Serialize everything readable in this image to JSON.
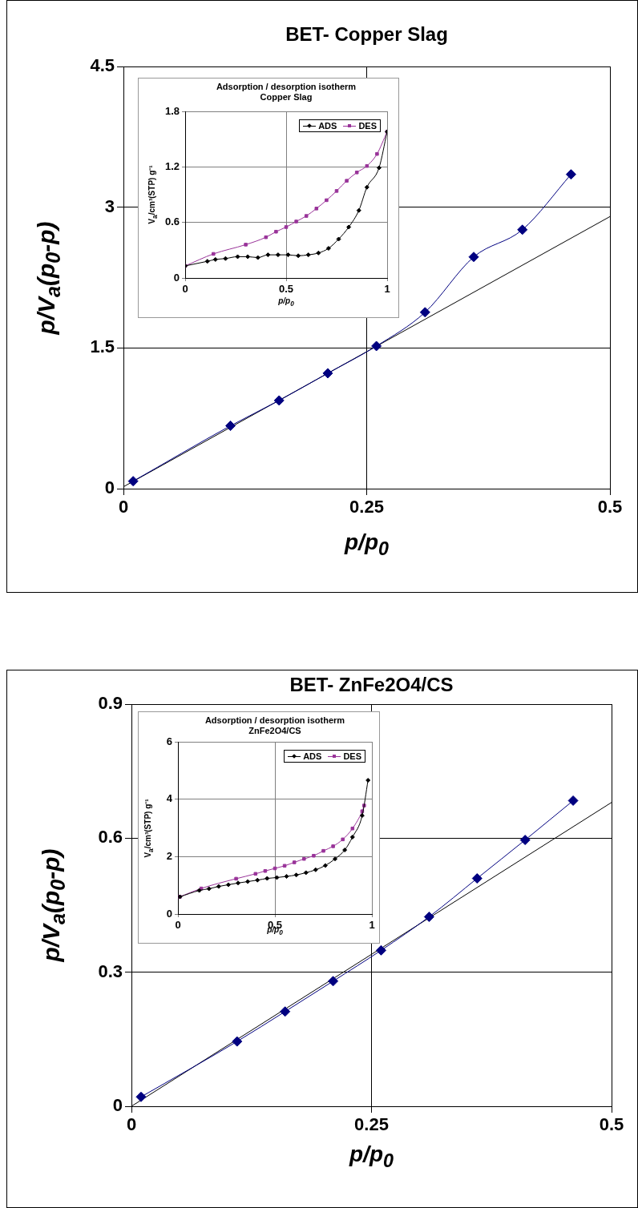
{
  "chart_data": [
    {
      "type": "line",
      "title": "BET- Copper Slag",
      "xlabel": "p/p$_{0}$",
      "ylabel": "p/V$_{a}$(p$_{0}$-p)",
      "xlim": [
        0,
        0.5
      ],
      "xticks": [
        0,
        0.25,
        0.5
      ],
      "ylim": [
        0,
        4.5
      ],
      "yticks": [
        0,
        1.5,
        3,
        4.5
      ],
      "grid": true,
      "series": [
        {
          "color": "#000080",
          "marker": "diamond",
          "x": [
            0.01,
            0.11,
            0.16,
            0.21,
            0.26,
            0.31,
            0.36,
            0.41,
            0.46
          ],
          "values": [
            0.08,
            0.67,
            0.94,
            1.23,
            1.52,
            1.88,
            2.47,
            2.76,
            3.35
          ]
        },
        {
          "type": "line",
          "color": "#000000",
          "marker": "none",
          "x": [
            0,
            0.5
          ],
          "values": [
            0.02,
            2.9
          ]
        }
      ]
    },
    {
      "type": "line",
      "title": "Adsorption / desorption isotherm",
      "subtitle": "Copper Slag",
      "xlabel": "p/p$_{0}$",
      "ylabel": "V$_{a}$/cm³(STP) g⁻¹",
      "xlim": [
        0,
        1
      ],
      "xticks": [
        0,
        0.5,
        1
      ],
      "ylim": [
        0,
        1.8
      ],
      "yticks": [
        0,
        0.6,
        1.2,
        1.8
      ],
      "grid": true,
      "legend": "top right",
      "series": [
        {
          "name": "ADS",
          "color": "#000000",
          "marker": "diamond",
          "x": [
            0,
            0.11,
            0.15,
            0.2,
            0.26,
            0.31,
            0.36,
            0.41,
            0.46,
            0.51,
            0.56,
            0.61,
            0.66,
            0.71,
            0.76,
            0.81,
            0.86,
            0.9,
            0.96,
            1
          ],
          "values": [
            0.13,
            0.18,
            0.2,
            0.21,
            0.23,
            0.23,
            0.22,
            0.25,
            0.25,
            0.25,
            0.24,
            0.25,
            0.27,
            0.32,
            0.42,
            0.55,
            0.73,
            0.98,
            1.19,
            1.58
          ]
        },
        {
          "name": "DES",
          "color": "#993399",
          "marker": "square",
          "x": [
            0,
            0.14,
            0.3,
            0.4,
            0.45,
            0.5,
            0.55,
            0.6,
            0.65,
            0.7,
            0.75,
            0.8,
            0.85,
            0.9,
            0.95,
            1
          ],
          "values": [
            0.13,
            0.26,
            0.36,
            0.44,
            0.5,
            0.55,
            0.61,
            0.67,
            0.75,
            0.84,
            0.94,
            1.05,
            1.14,
            1.21,
            1.34,
            1.58
          ]
        }
      ]
    },
    {
      "type": "line",
      "title": "BET- ZnFe2O4/CS",
      "xlabel": "p/p$_{0}$",
      "ylabel": "p/V$_{a}$(p$_{0}$-p)",
      "xlim": [
        0,
        0.5
      ],
      "xticks": [
        0,
        0.25,
        0.5
      ],
      "ylim": [
        0,
        0.9
      ],
      "yticks": [
        0,
        0.3,
        0.6,
        0.9
      ],
      "grid": true,
      "series": [
        {
          "color": "#000080",
          "marker": "diamond",
          "x": [
            0.01,
            0.11,
            0.16,
            0.21,
            0.26,
            0.31,
            0.36,
            0.41,
            0.46
          ],
          "values": [
            0.021,
            0.145,
            0.212,
            0.28,
            0.349,
            0.424,
            0.51,
            0.596,
            0.684
          ]
        },
        {
          "type": "line",
          "color": "#000000",
          "marker": "none",
          "x": [
            0,
            0.5
          ],
          "values": [
            0,
            0.68
          ]
        }
      ]
    },
    {
      "type": "line",
      "title": "Adsorption / desorption isotherm",
      "subtitle": "ZnFe2O4/CS",
      "xlabel": "p/p$_{0}$",
      "ylabel": "V$_{a}$/cm³(STP) g⁻¹",
      "xlim": [
        0,
        1
      ],
      "xticks": [
        0,
        0.5,
        1
      ],
      "ylim": [
        0,
        6
      ],
      "yticks": [
        0,
        2,
        4,
        6
      ],
      "grid": true,
      "legend": "top right",
      "series": [
        {
          "name": "ADS",
          "color": "#000000",
          "marker": "diamond",
          "x": [
            0.01,
            0.11,
            0.16,
            0.21,
            0.26,
            0.31,
            0.36,
            0.41,
            0.46,
            0.51,
            0.56,
            0.61,
            0.66,
            0.71,
            0.76,
            0.81,
            0.86,
            0.9,
            0.95,
            0.98
          ],
          "values": [
            0.6,
            0.82,
            0.88,
            0.96,
            1.02,
            1.08,
            1.13,
            1.18,
            1.24,
            1.27,
            1.31,
            1.36,
            1.44,
            1.54,
            1.69,
            1.92,
            2.23,
            2.68,
            3.43,
            4.66
          ]
        },
        {
          "name": "DES",
          "color": "#993399",
          "marker": "square",
          "x": [
            0.01,
            0.12,
            0.3,
            0.4,
            0.45,
            0.5,
            0.55,
            0.6,
            0.65,
            0.7,
            0.75,
            0.8,
            0.85,
            0.9,
            0.95,
            0.96
          ],
          "values": [
            0.6,
            0.89,
            1.23,
            1.4,
            1.5,
            1.59,
            1.68,
            1.8,
            1.92,
            2.03,
            2.2,
            2.36,
            2.6,
            2.98,
            3.58,
            3.78
          ]
        }
      ]
    }
  ]
}
